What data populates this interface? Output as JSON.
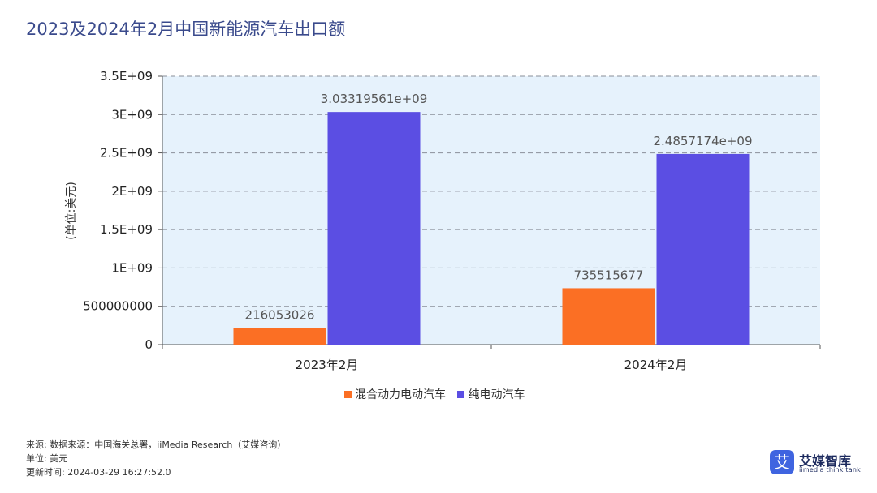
{
  "title": "2023及2024年2月中国新能源汽车出口额",
  "chart_data": {
    "type": "bar",
    "categories": [
      "2023年2月",
      "2024年2月"
    ],
    "series": [
      {
        "name": "混合动力电动汽车",
        "values": [
          216053026,
          735515677
        ],
        "labels": [
          "216053026",
          "735515677"
        ],
        "color": "#fb6f24"
      },
      {
        "name": "纯电动汽车",
        "values": [
          3033195610,
          2485717400
        ],
        "labels": [
          "3.03319561e+09",
          "2.4857174e+09"
        ],
        "color": "#5b4ee3"
      }
    ],
    "ylabel": "(单位:美元)",
    "ylim": [
      0,
      3500000000
    ],
    "yticks": [
      0,
      500000000,
      1000000000,
      1500000000,
      2000000000,
      2500000000,
      3000000000,
      3500000000
    ],
    "ytick_labels": [
      "0",
      "500000000",
      "1E+09",
      "1.5E+09",
      "2E+09",
      "2.5E+09",
      "3E+09",
      "3.5E+09"
    ],
    "grid": true,
    "legend": "bottom",
    "plot_background": "#e6f2fc"
  },
  "footer": {
    "source": "来源: 数据来源：中国海关总署，iiMedia Research（艾媒咨询）",
    "unit": "单位: 美元",
    "updated": "更新时间: 2024-03-29 16:27:52.0"
  },
  "logo": {
    "mark": "艾",
    "name": "艾媒智库",
    "sub": "iimedia think tank"
  }
}
